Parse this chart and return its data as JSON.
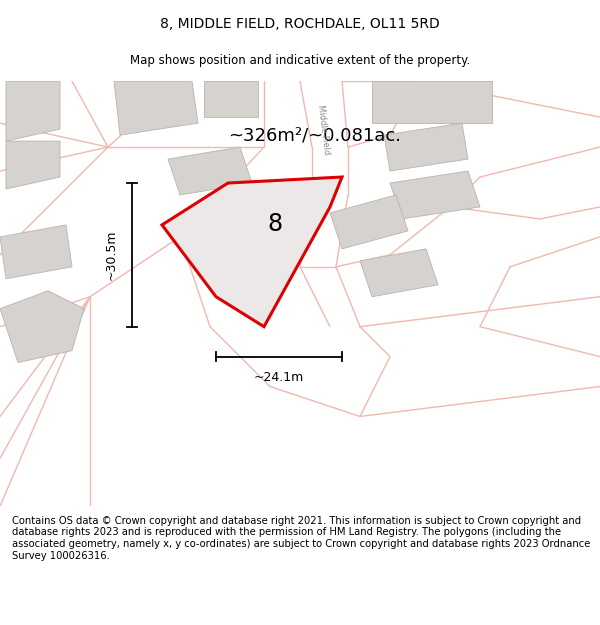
{
  "title": "8, MIDDLE FIELD, ROCHDALE, OL11 5RD",
  "subtitle": "Map shows position and indicative extent of the property.",
  "area_label": "~326m²/~0.081ac.",
  "property_number": "8",
  "dim_width": "~24.1m",
  "dim_height": "~30.5m",
  "road_label": "Middle Field",
  "footer": "Contains OS data © Crown copyright and database right 2021. This information is subject to Crown copyright and database rights 2023 and is reproduced with the permission of HM Land Registry. The polygons (including the associated geometry, namely x, y co-ordinates) are subject to Crown copyright and database rights 2023 Ordnance Survey 100026316.",
  "map_bg": "#f7f4f2",
  "plot_color": "#dd0000",
  "plot_fill": "#ede8e8",
  "building_fill": "#d5d2cf",
  "building_edge": "#b8b4b0",
  "road_color": "#f0b8b0",
  "road_lw": 1.0,
  "title_fontsize": 10,
  "subtitle_fontsize": 8.5,
  "footer_fontsize": 7.2,
  "area_fontsize": 13,
  "number_fontsize": 17,
  "dim_fontsize": 9
}
